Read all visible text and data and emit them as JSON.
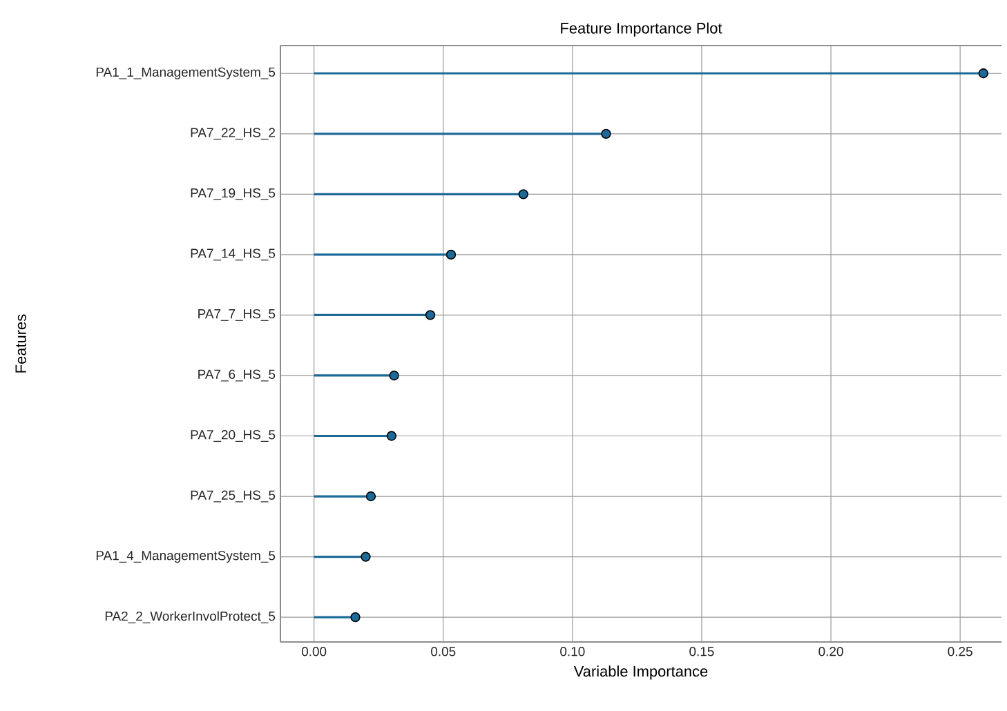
{
  "chart_data": {
    "type": "lollipop",
    "orientation": "horizontal",
    "title": "Feature Importance Plot",
    "xlabel": "Variable Importance",
    "ylabel": "Features",
    "categories": [
      "PA1_1_ManagementSystem_5",
      "PA7_22_HS_2",
      "PA7_19_HS_5",
      "PA7_14_HS_5",
      "PA7_7_HS_5",
      "PA7_6_HS_5",
      "PA7_20_HS_5",
      "PA7_25_HS_5",
      "PA1_4_ManagementSystem_5",
      "PA2_2_WorkerInvolProtect_5"
    ],
    "values": [
      0.259,
      0.113,
      0.081,
      0.053,
      0.045,
      0.031,
      0.03,
      0.022,
      0.02,
      0.016
    ],
    "color": "#1d6a99",
    "marker": "circle",
    "xlim": [
      -0.013,
      0.266
    ],
    "xticks": [
      {
        "value": 0,
        "label": "0.00"
      },
      {
        "value": 0.05,
        "label": "0.05"
      },
      {
        "value": 0.1,
        "label": "0.10"
      },
      {
        "value": 0.15,
        "label": "0.15"
      },
      {
        "value": 0.2,
        "label": "0.20"
      },
      {
        "value": 0.25,
        "label": "0.25"
      }
    ],
    "grid": true
  }
}
